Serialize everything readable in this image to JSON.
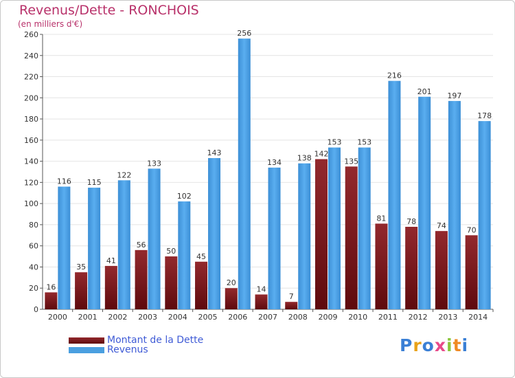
{
  "chart_data": {
    "type": "bar",
    "title": "Revenus/Dette - RONCHOIS",
    "subtitle": "(en milliers d'€)",
    "categories": [
      "2000",
      "2001",
      "2002",
      "2003",
      "2004",
      "2005",
      "2006",
      "2007",
      "2008",
      "2009",
      "2010",
      "2011",
      "2012",
      "2013",
      "2014"
    ],
    "series": [
      {
        "name": "Montant de la Dette",
        "values": [
          16,
          35,
          41,
          56,
          50,
          45,
          20,
          14,
          7,
          142,
          135,
          81,
          78,
          74,
          70
        ],
        "color": "#7a1518"
      },
      {
        "name": "Revenus",
        "values": [
          116,
          115,
          122,
          133,
          102,
          143,
          256,
          134,
          138,
          153,
          153,
          216,
          201,
          197,
          178
        ],
        "color": "#4a9fe0"
      }
    ],
    "ylim": [
      0,
      260
    ],
    "yticks": [
      0,
      20,
      40,
      60,
      80,
      100,
      120,
      140,
      160,
      180,
      200,
      220,
      240,
      260
    ],
    "grid": true,
    "legend": "bottom-left"
  },
  "legend": {
    "debt_label": "Montant de la Dette",
    "revenue_label": "Revenus"
  },
  "logo": {
    "letters": [
      "P",
      "r",
      "o",
      "x",
      "i",
      "t",
      "i"
    ],
    "colors": [
      "#3a7fd5",
      "#e8a21a",
      "#3a7fd5",
      "#e84a8a",
      "#8cc63e",
      "#f08a24",
      "#3a7fd5"
    ]
  }
}
